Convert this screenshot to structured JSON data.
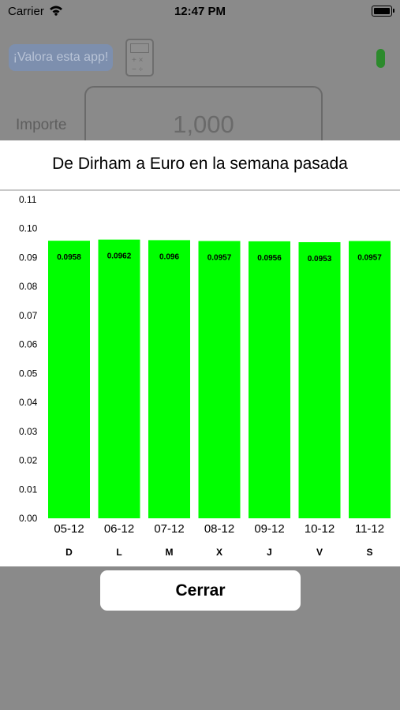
{
  "status_bar": {
    "carrier": "Carrier",
    "time": "12:47 PM"
  },
  "background_app": {
    "rate_button": "¡Valora esta app!",
    "amount_label": "Importe",
    "amount_value": "1,000"
  },
  "modal": {
    "title": "De Dirham a Euro en la semana pasada",
    "close_button": "Cerrar"
  },
  "colors": {
    "bar": "#00ff00",
    "overlay": "#8a8a8a",
    "panel": "#ffffff"
  },
  "chart_data": {
    "type": "bar",
    "title": "De Dirham a Euro en la semana pasada",
    "categories": [
      "05-12",
      "06-12",
      "07-12",
      "08-12",
      "09-12",
      "10-12",
      "11-12"
    ],
    "day_labels": [
      "D",
      "L",
      "M",
      "X",
      "J",
      "V",
      "S"
    ],
    "values": [
      0.0958,
      0.0962,
      0.096,
      0.0957,
      0.0956,
      0.0953,
      0.0957
    ],
    "value_labels": [
      "0.0958",
      "0.0962",
      "0.096",
      "0.0957",
      "0.0956",
      "0.0953",
      "0.0957"
    ],
    "y_ticks": [
      "0.00",
      "0.01",
      "0.02",
      "0.03",
      "0.04",
      "0.05",
      "0.06",
      "0.07",
      "0.08",
      "0.09",
      "0.10",
      "0.11"
    ],
    "ylim": [
      0,
      0.11
    ],
    "grid": false,
    "legend": "none"
  }
}
